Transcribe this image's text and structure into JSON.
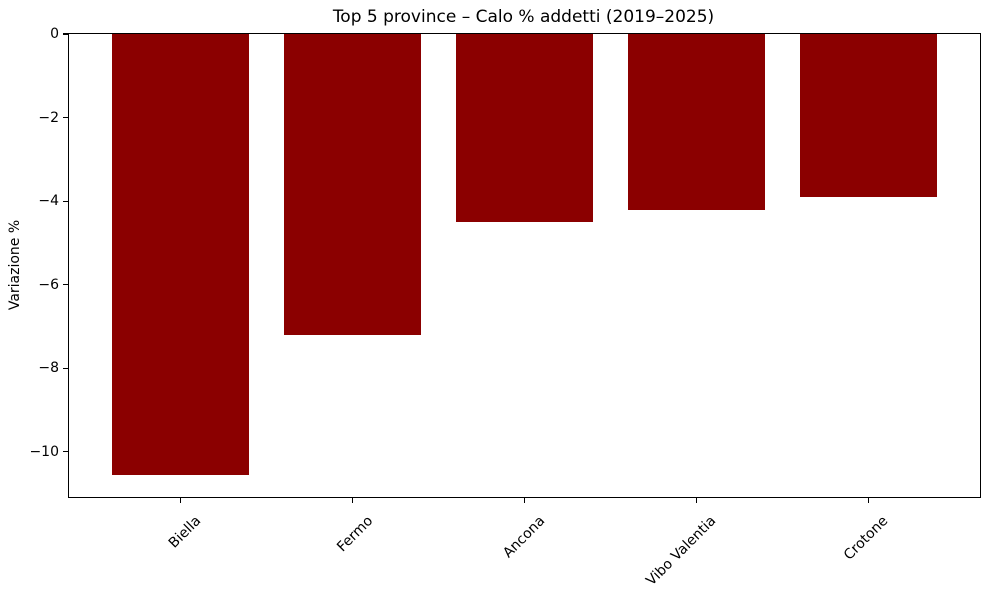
{
  "chart_data": {
    "type": "bar",
    "title": "Top 5 province – Calo % addetti (2019–2025)",
    "xlabel": "",
    "ylabel": "Variazione %",
    "categories": [
      "Biella",
      "Fermo",
      "Ancona",
      "Vibo Valentia",
      "Crotone"
    ],
    "values": [
      -10.55,
      -7.2,
      -4.5,
      -4.2,
      -3.9
    ],
    "ylim": [
      -11.08,
      0
    ],
    "xlim": [
      -0.65,
      4.65
    ],
    "bar_width": 0.8,
    "yticks": [
      0,
      -2,
      -4,
      -6,
      -8,
      -10
    ],
    "ytick_labels": [
      "0",
      "−2",
      "−4",
      "−6",
      "−8",
      "−10"
    ],
    "x_tick_rotation": 45,
    "grid": false,
    "legend": null,
    "bar_color": "#8B0000",
    "axis_color": "#000000",
    "background_color": "#ffffff"
  }
}
